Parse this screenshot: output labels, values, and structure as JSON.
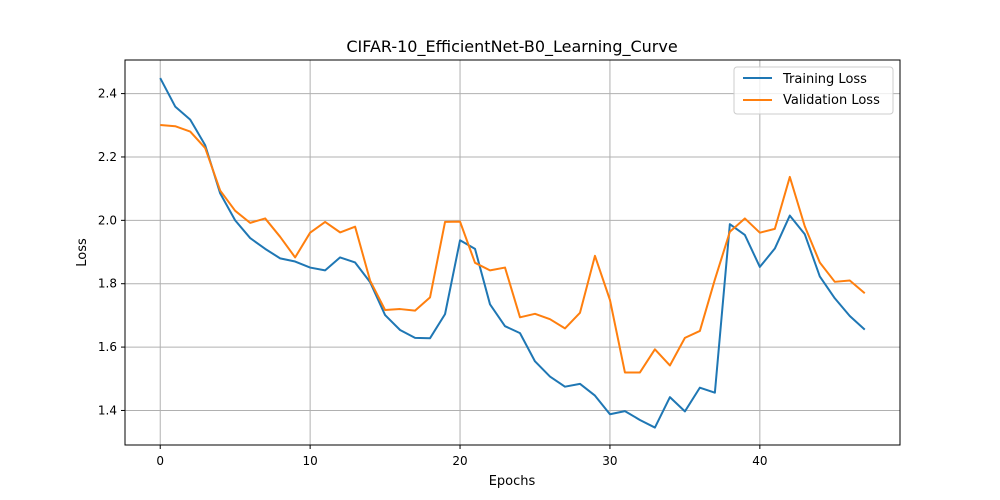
{
  "chart_data": {
    "type": "line",
    "title": "CIFAR-10_EfficientNet-B0_Learning_Curve",
    "xlabel": "Epochs",
    "ylabel": "Loss",
    "xlim": [
      -2.35,
      49.35
    ],
    "ylim": [
      1.291,
      2.506
    ],
    "xticks": [
      0,
      10,
      20,
      30,
      40
    ],
    "yticks": [
      1.4,
      1.6,
      1.8,
      2.0,
      2.2,
      2.4
    ],
    "xtick_labels": [
      "0",
      "10",
      "20",
      "30",
      "40"
    ],
    "ytick_labels": [
      "1.4",
      "1.6",
      "1.8",
      "2.0",
      "2.2",
      "2.4"
    ],
    "grid": true,
    "legend_position": "top-right",
    "x": [
      0,
      1,
      2,
      3,
      4,
      5,
      6,
      7,
      8,
      9,
      10,
      11,
      12,
      13,
      14,
      15,
      16,
      17,
      18,
      19,
      20,
      21,
      22,
      23,
      24,
      25,
      26,
      27,
      28,
      29,
      30,
      31,
      32,
      33,
      34,
      35,
      36,
      37,
      38,
      39,
      40,
      41,
      42,
      43,
      44,
      45,
      46,
      47
    ],
    "series": [
      {
        "name": "Training Loss",
        "color": "#1f77b4",
        "values": [
          2.449,
          2.359,
          2.318,
          2.237,
          2.085,
          2.0,
          1.944,
          1.91,
          1.88,
          1.87,
          1.851,
          1.842,
          1.883,
          1.867,
          1.805,
          1.701,
          1.654,
          1.629,
          1.628,
          1.704,
          1.937,
          1.91,
          1.735,
          1.666,
          1.644,
          1.555,
          1.507,
          1.475,
          1.484,
          1.447,
          1.388,
          1.398,
          1.37,
          1.346,
          1.442,
          1.397,
          1.472,
          1.456,
          1.988,
          1.954,
          1.853,
          1.911,
          2.015,
          1.956,
          1.823,
          1.754,
          1.698,
          1.655
        ]
      },
      {
        "name": "Validation Loss",
        "color": "#ff7f0e",
        "values": [
          2.301,
          2.297,
          2.28,
          2.228,
          2.094,
          2.03,
          1.992,
          2.006,
          1.948,
          1.883,
          1.961,
          1.995,
          1.962,
          1.98,
          1.81,
          1.717,
          1.72,
          1.715,
          1.757,
          1.995,
          1.996,
          1.866,
          1.842,
          1.851,
          1.694,
          1.705,
          1.688,
          1.659,
          1.708,
          1.888,
          1.749,
          1.52,
          1.52,
          1.593,
          1.542,
          1.629,
          1.651,
          1.813,
          1.964,
          2.006,
          1.961,
          1.973,
          2.137,
          1.981,
          1.867,
          1.806,
          1.81,
          1.77
        ]
      }
    ]
  }
}
